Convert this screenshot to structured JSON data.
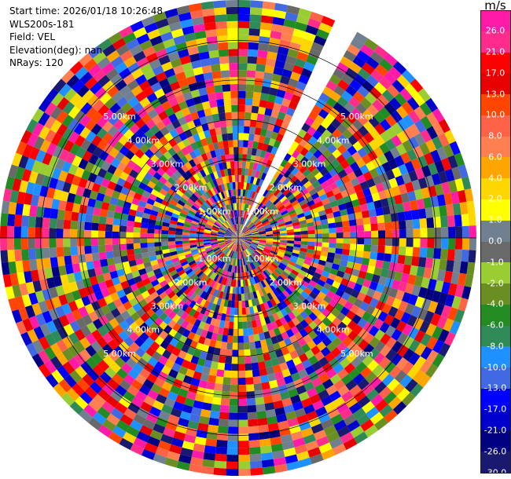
{
  "header": {
    "start_time": "Start time: 2026/01/18 10:26:48",
    "station": "WLS200s-181",
    "field": "Field: VEL",
    "elevation": "Elevation(deg): nan",
    "nrays": "NRays: 120"
  },
  "colorbar": {
    "unit": "m/s",
    "labels": [
      "26.0",
      "21.0",
      "17.0",
      "13.0",
      "10.0",
      "8.0",
      "6.0",
      "4.0",
      "2.0",
      "1.0",
      "0.0",
      "-1.0",
      "-2.0",
      "-4.0",
      "-6.0",
      "-8.0",
      "-10.0",
      "-13.0",
      "-17.0",
      "-21.0",
      "-26.0",
      "-30.0"
    ],
    "colors": [
      "#ff1aa8",
      "#ff2c8c",
      "#ff0000",
      "#e60000",
      "#ff4500",
      "#ff6347",
      "#ff7f50",
      "#ffa500",
      "#ffd700",
      "#ffff00",
      "#708090",
      "#696969",
      "#9acd32",
      "#6b8e23",
      "#228b22",
      "#2e8b57",
      "#1e90ff",
      "#4169e1",
      "#0000ff",
      "#0000cd",
      "#000080",
      "#191970"
    ]
  },
  "chart_data": {
    "type": "ppi",
    "field": "VEL",
    "units": "m/s",
    "nrays": 120,
    "max_range_km": 5.0,
    "range_rings_km": [
      1.0,
      2.0,
      3.0,
      4.0,
      5.0
    ],
    "ring_labels": [
      "1.00km",
      "2.00km",
      "3.00km",
      "4.00km",
      "5.00km"
    ],
    "missing_sector_deg": [
      24,
      30
    ],
    "value_range": [
      -30.0,
      30.0
    ]
  }
}
